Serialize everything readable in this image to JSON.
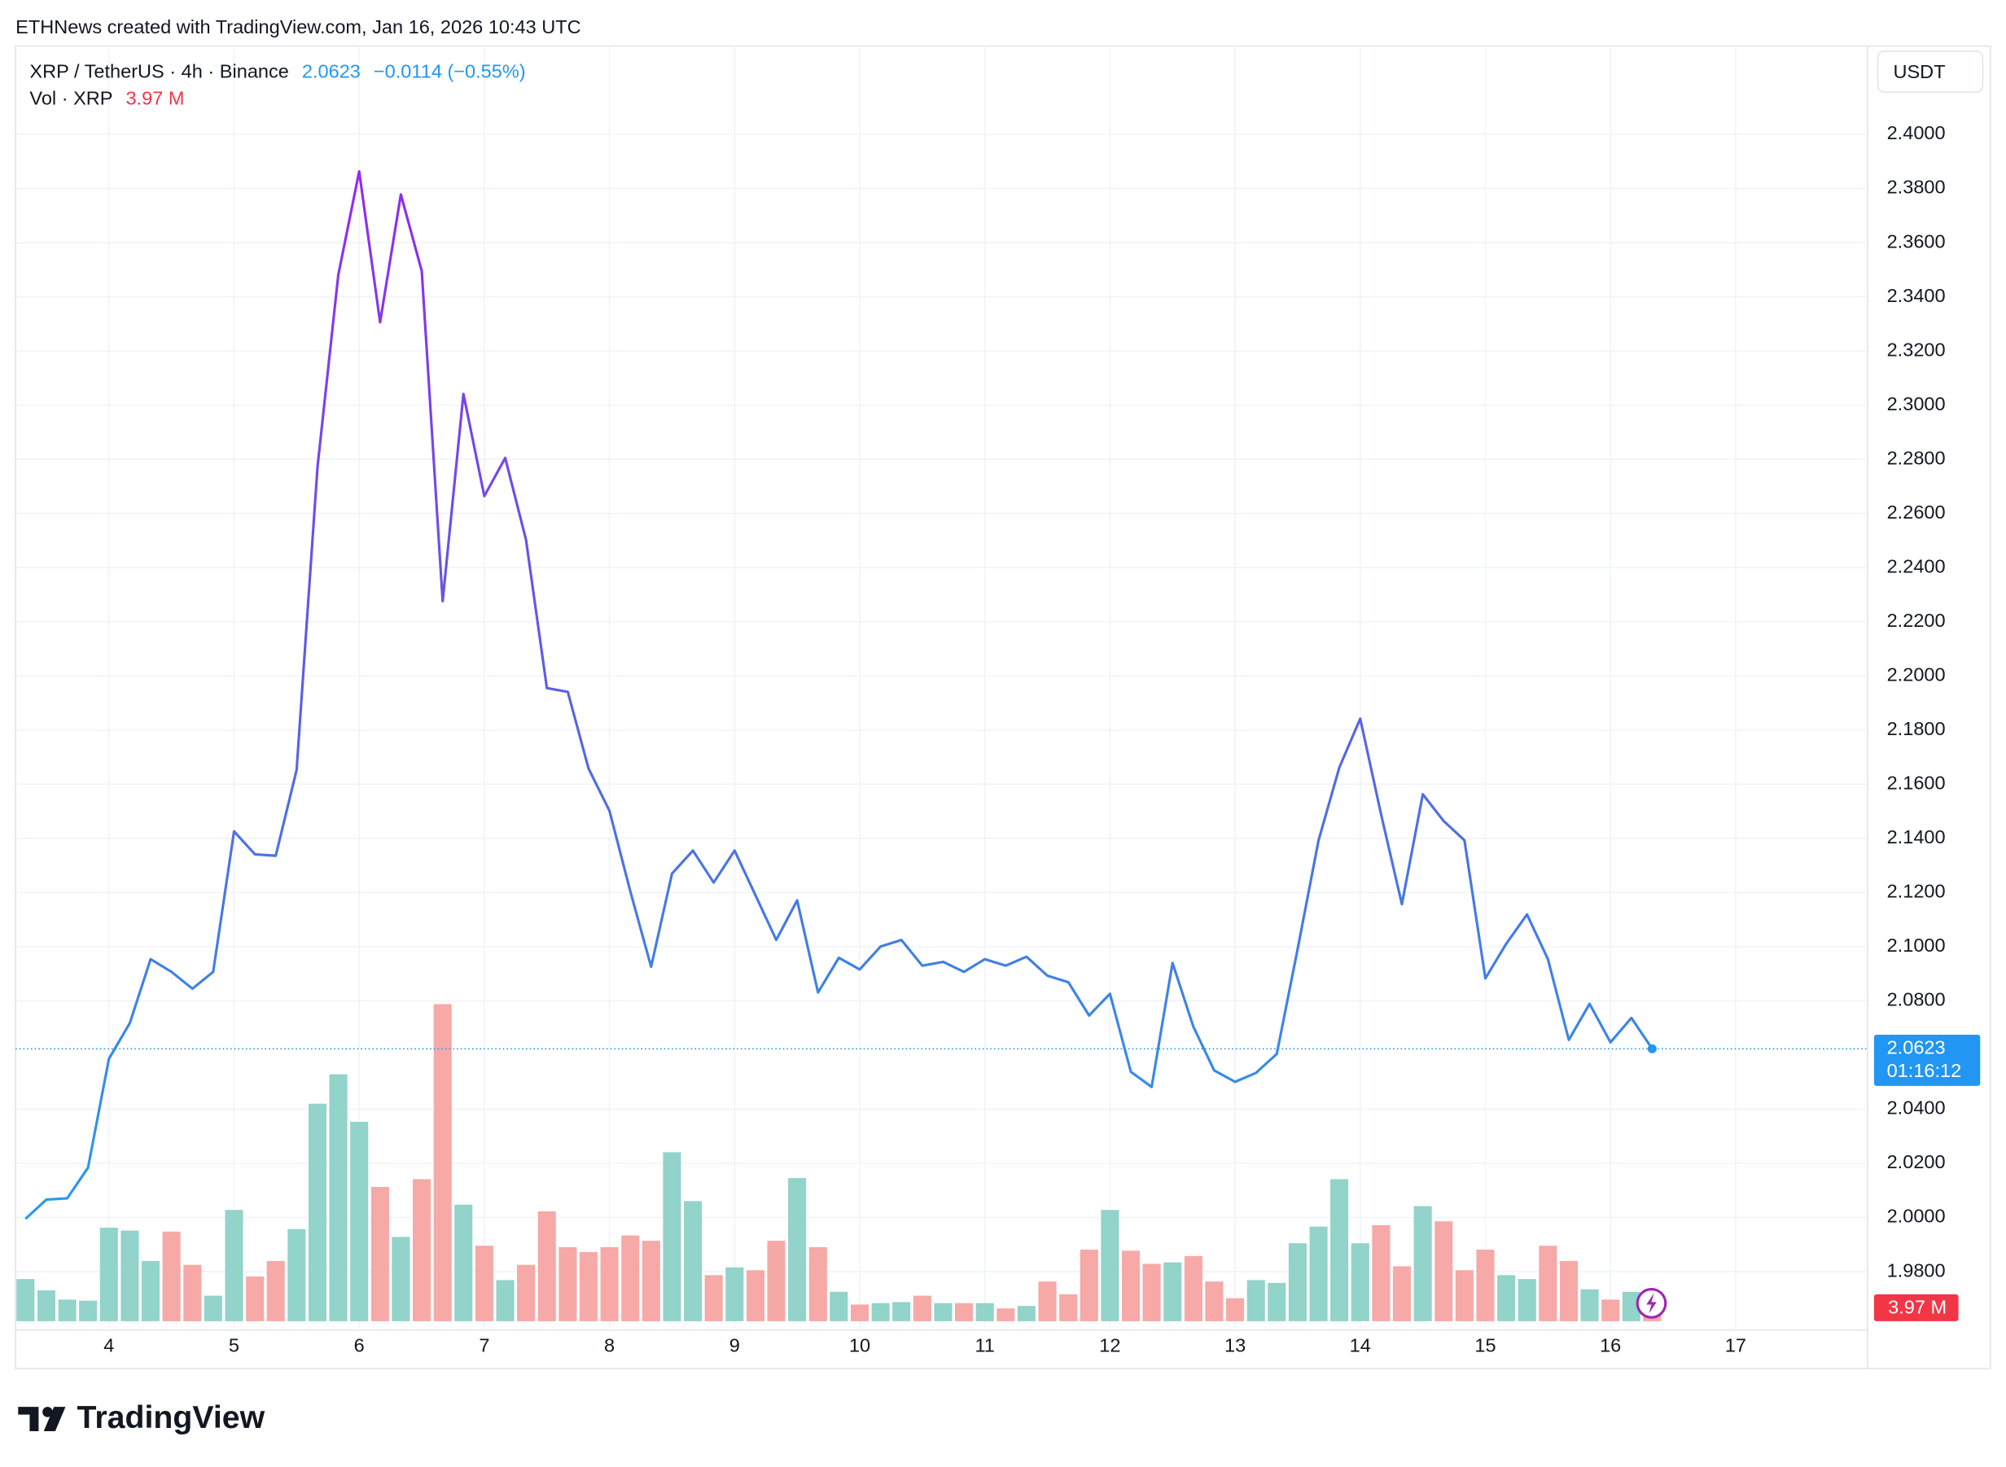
{
  "header": {
    "attribution": "ETHNews created with TradingView.com, Jan 16, 2026 10:43 UTC",
    "change": "−0.0114 (−0.55%)",
    "currency": "USDT",
    "countdown": "01:16:12",
    "brand": "TradingView"
  },
  "chart_data": {
    "type": "line",
    "x": [
      3.333,
      3.5,
      3.667,
      3.833,
      4,
      4.167,
      4.333,
      4.5,
      4.667,
      4.833,
      5,
      5.167,
      5.333,
      5.5,
      5.667,
      5.833,
      6,
      6.167,
      6.333,
      6.5,
      6.667,
      6.833,
      7,
      7.167,
      7.333,
      7.5,
      7.667,
      7.833,
      8,
      8.167,
      8.333,
      8.5,
      8.667,
      8.833,
      9,
      9.167,
      9.333,
      9.5,
      9.667,
      9.833,
      10,
      10.167,
      10.333,
      10.5,
      10.667,
      10.833,
      11,
      11.167,
      11.333,
      11.5,
      11.667,
      11.833,
      12,
      12.167,
      12.333,
      12.5,
      12.667,
      12.833,
      13,
      13.167,
      13.333,
      13.5,
      13.667,
      13.833,
      14,
      14.167,
      14.333,
      14.5,
      14.667,
      14.833,
      15,
      15.167,
      15.333,
      15.5,
      15.667,
      15.833,
      16,
      16.167,
      16.333
    ],
    "xlim": [
      3.254,
      18.055
    ],
    "xticks": [
      4,
      5,
      6,
      7,
      8,
      9,
      10,
      11,
      12,
      13,
      14,
      15,
      16,
      17
    ],
    "ylim": [
      1.9584,
      2.4326
    ],
    "yticks": [
      {
        "value": 1.98,
        "label": "1.9800"
      },
      {
        "value": 2,
        "label": "2.0000"
      },
      {
        "value": 2.02,
        "label": "2.0200"
      },
      {
        "value": 2.04,
        "label": "2.0400"
      },
      {
        "value": 2.08,
        "label": "2.0800"
      },
      {
        "value": 2.1,
        "label": "2.1000"
      },
      {
        "value": 2.12,
        "label": "2.1200"
      },
      {
        "value": 2.14,
        "label": "2.1400"
      },
      {
        "value": 2.16,
        "label": "2.1600"
      },
      {
        "value": 2.18,
        "label": "2.1800"
      },
      {
        "value": 2.2,
        "label": "2.2000"
      },
      {
        "value": 2.22,
        "label": "2.2200"
      },
      {
        "value": 2.24,
        "label": "2.2400"
      },
      {
        "value": 2.26,
        "label": "2.2600"
      },
      {
        "value": 2.28,
        "label": "2.2800"
      },
      {
        "value": 2.3,
        "label": "2.3000"
      },
      {
        "value": 2.32,
        "label": "2.3200"
      },
      {
        "value": 2.34,
        "label": "2.3400"
      },
      {
        "value": 2.36,
        "label": "2.3600"
      },
      {
        "value": 2.38,
        "label": "2.3800"
      },
      {
        "value": 2.4,
        "label": "2.4000"
      }
    ],
    "y2lim": [
      0,
      360
    ],
    "grid": true,
    "series": [
      {
        "name": "XRP / TetherUS · 4h · Binance",
        "colors": [
          "#a21cf2",
          "#5b5fe4",
          "#1ea9e6"
        ],
        "tag_color": "#2196f3",
        "values": [
          1.9995,
          2.0066,
          2.0071,
          2.0184,
          2.0586,
          2.0718,
          2.0954,
          2.0907,
          2.0845,
          2.0907,
          2.1426,
          2.1341,
          2.1336,
          2.1653,
          2.2772,
          2.3481,
          2.3863,
          2.3306,
          2.3778,
          2.3495,
          2.2276,
          2.3041,
          2.2664,
          2.2805,
          2.2503,
          2.1955,
          2.1941,
          2.1658,
          2.1502,
          2.1204,
          2.0926,
          2.127,
          2.1355,
          2.1237,
          2.1355,
          2.119,
          2.1025,
          2.1171,
          2.0831,
          2.0959,
          2.0916,
          2.1001,
          2.1025,
          2.093,
          2.0944,
          2.0907,
          2.0954,
          2.093,
          2.0963,
          2.0893,
          2.0869,
          2.0746,
          2.0826,
          2.0538,
          2.0482,
          2.094,
          2.0704,
          2.0543,
          2.0501,
          2.0534,
          2.0604,
          2.0992,
          2.1393,
          2.1662,
          2.1842,
          2.1488,
          2.1157,
          2.1563,
          2.1464,
          2.1393,
          2.0883,
          2.1011,
          2.1119,
          2.0954,
          2.0656,
          2.0789,
          2.0647,
          2.0737,
          2.0623
        ]
      },
      {
        "name": "Vol · XRP",
        "axis": "y2",
        "type": "bar",
        "last_label": "3.97 M",
        "tag_color": "#f23645",
        "values": [
          11.9,
          8.7,
          6.1,
          5.8,
          26.4,
          25.6,
          17,
          25.3,
          15.9,
          7.2,
          31.4,
          12.6,
          17,
          26,
          61.4,
          69.7,
          56.3,
          37.9,
          23.8,
          40.1,
          89.5,
          32.9,
          21.3,
          11.6,
          15.9,
          31,
          20.9,
          19.5,
          20.9,
          24.2,
          22.7,
          47.7,
          33.9,
          13,
          15.2,
          14.4,
          22.7,
          40.4,
          20.9,
          8.3,
          4.7,
          5.1,
          5.4,
          7.2,
          5.1,
          5.1,
          5.1,
          3.6,
          4.3,
          11.2,
          7.6,
          20.2,
          31.4,
          19.9,
          16.2,
          16.6,
          18.4,
          11.2,
          6.5,
          11.6,
          10.8,
          22,
          26.7,
          40.1,
          22,
          27.1,
          15.5,
          32.5,
          28.2,
          14.4,
          20.2,
          13,
          11.9,
          21.3,
          17,
          9,
          6.1,
          8.3,
          3.97
        ],
        "colors": [
          "#92d3ca",
          "#92d3ca",
          "#92d3ca",
          "#92d3ca",
          "#92d3ca",
          "#92d3ca",
          "#92d3ca",
          "#f6a9a7",
          "#f6a9a7",
          "#92d3ca",
          "#92d3ca",
          "#f6a9a7",
          "#f6a9a7",
          "#92d3ca",
          "#92d3ca",
          "#92d3ca",
          "#92d3ca",
          "#f6a9a7",
          "#92d3ca",
          "#f6a9a7",
          "#f6a9a7",
          "#92d3ca",
          "#f6a9a7",
          "#92d3ca",
          "#f6a9a7",
          "#f6a9a7",
          "#f6a9a7",
          "#f6a9a7",
          "#f6a9a7",
          "#f6a9a7",
          "#f6a9a7",
          "#92d3ca",
          "#92d3ca",
          "#f6a9a7",
          "#92d3ca",
          "#f6a9a7",
          "#f6a9a7",
          "#92d3ca",
          "#f6a9a7",
          "#92d3ca",
          "#f6a9a7",
          "#92d3ca",
          "#92d3ca",
          "#f6a9a7",
          "#92d3ca",
          "#f6a9a7",
          "#92d3ca",
          "#f6a9a7",
          "#92d3ca",
          "#f6a9a7",
          "#f6a9a7",
          "#f6a9a7",
          "#92d3ca",
          "#f6a9a7",
          "#f6a9a7",
          "#92d3ca",
          "#f6a9a7",
          "#f6a9a7",
          "#f6a9a7",
          "#92d3ca",
          "#92d3ca",
          "#92d3ca",
          "#92d3ca",
          "#92d3ca",
          "#92d3ca",
          "#f6a9a7",
          "#f6a9a7",
          "#92d3ca",
          "#f6a9a7",
          "#f6a9a7",
          "#f6a9a7",
          "#92d3ca",
          "#92d3ca",
          "#f6a9a7",
          "#f6a9a7",
          "#92d3ca",
          "#f6a9a7",
          "#92d3ca",
          "#f6a9a7"
        ]
      }
    ]
  }
}
